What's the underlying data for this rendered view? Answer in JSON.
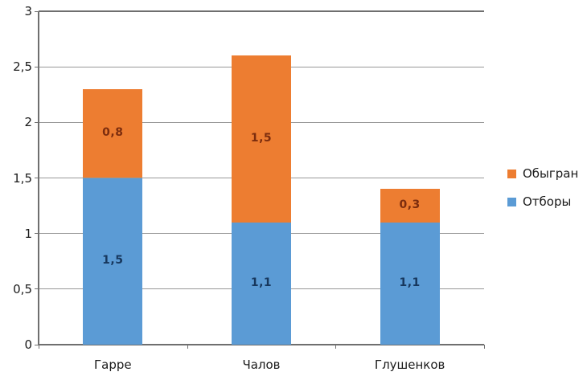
{
  "chart_data": {
    "type": "bar",
    "stacked": true,
    "title": "",
    "xlabel": "",
    "ylabel": "",
    "categories": [
      "Гарре",
      "Чалов",
      "Глушенков"
    ],
    "series": [
      {
        "name": "Отборы",
        "color": "#5B9BD5",
        "label_color": "#17375D",
        "values": [
          1.5,
          1.1,
          1.1
        ],
        "labels": [
          "1,5",
          "1,1",
          "1,1"
        ]
      },
      {
        "name": "Обыгран",
        "color": "#ED7D31",
        "label_color": "#7C2D0E",
        "values": [
          0.8,
          1.5,
          0.3
        ],
        "labels": [
          "0,8",
          "1,5",
          "0,3"
        ]
      }
    ],
    "ylim": [
      0,
      3
    ],
    "y_ticks": [
      {
        "value": 0,
        "label": "0"
      },
      {
        "value": 0.5,
        "label": "0,5"
      },
      {
        "value": 1,
        "label": "1"
      },
      {
        "value": 1.5,
        "label": "1,5"
      },
      {
        "value": 2,
        "label": "2"
      },
      {
        "value": 2.5,
        "label": "2,5"
      },
      {
        "value": 3,
        "label": "3"
      }
    ],
    "grid": true,
    "legend": {
      "position": "right",
      "entries": [
        {
          "label": "Обыгран",
          "color": "#ED7D31"
        },
        {
          "label": "Отборы",
          "color": "#5B9BD5"
        }
      ]
    }
  },
  "colors": {
    "gridline": "#989898",
    "axis": "#6f6f6f",
    "text": "#1a1a1a"
  }
}
